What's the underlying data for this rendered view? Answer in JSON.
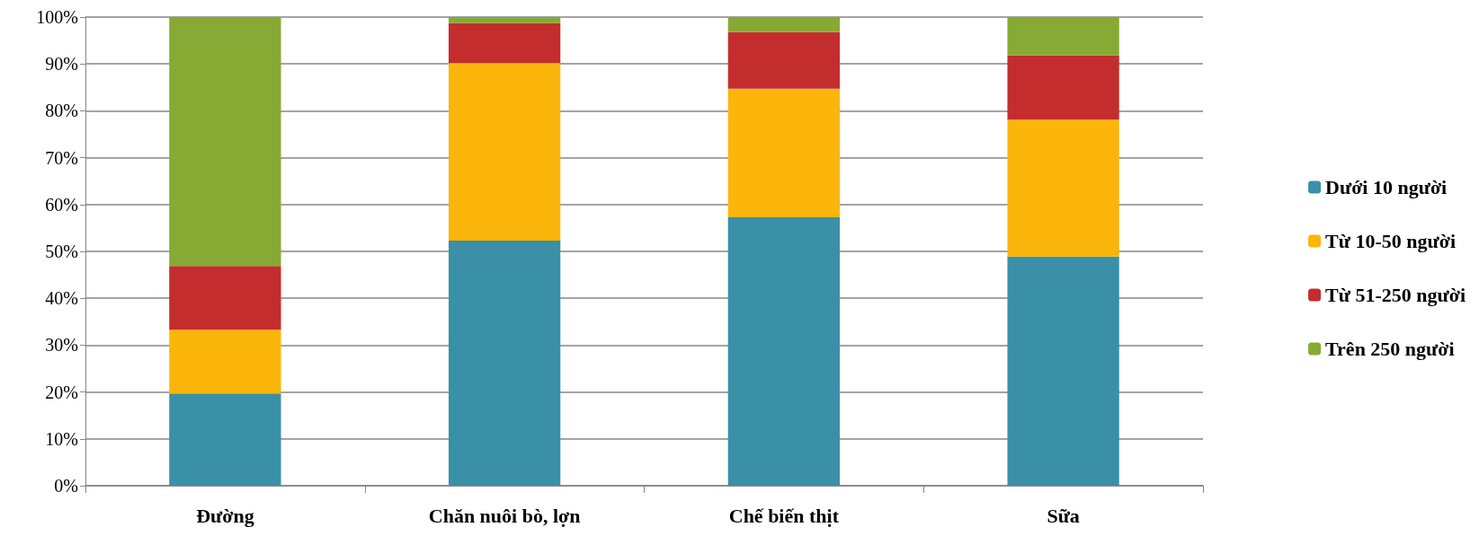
{
  "chart_data": {
    "type": "bar",
    "stacked": true,
    "categories": [
      "Đường",
      "Chăn nuôi bò, lợn",
      "Chế biến thịt",
      "Sữa"
    ],
    "series": [
      {
        "name": "Dưới 10 người",
        "color": "#3a90a6",
        "values": [
          19.7,
          52.3,
          57.3,
          48.9
        ]
      },
      {
        "name": "Từ 10-50 người",
        "color": "#fcb50b",
        "values": [
          13.6,
          37.9,
          27.4,
          29.2
        ]
      },
      {
        "name": "Từ 51-250 người",
        "color": "#c32d2e",
        "values": [
          13.6,
          8.5,
          12.1,
          13.7
        ]
      },
      {
        "name": "Trên 250 người",
        "color": "#86aa34",
        "values": [
          53.1,
          1.3,
          3.2,
          8.2
        ]
      }
    ],
    "ylim": [
      0,
      100
    ],
    "yticks": [
      {
        "value": 0,
        "label": "0%"
      },
      {
        "value": 10,
        "label": "10%"
      },
      {
        "value": 20,
        "label": "20%"
      },
      {
        "value": 30,
        "label": "30%"
      },
      {
        "value": 40,
        "label": "40%"
      },
      {
        "value": 50,
        "label": "50%"
      },
      {
        "value": 60,
        "label": "60%"
      },
      {
        "value": 70,
        "label": "70%"
      },
      {
        "value": 80,
        "label": "80%"
      },
      {
        "value": 90,
        "label": "90%"
      },
      {
        "value": 100,
        "label": "100%"
      }
    ],
    "grid": true,
    "legend": "right"
  }
}
